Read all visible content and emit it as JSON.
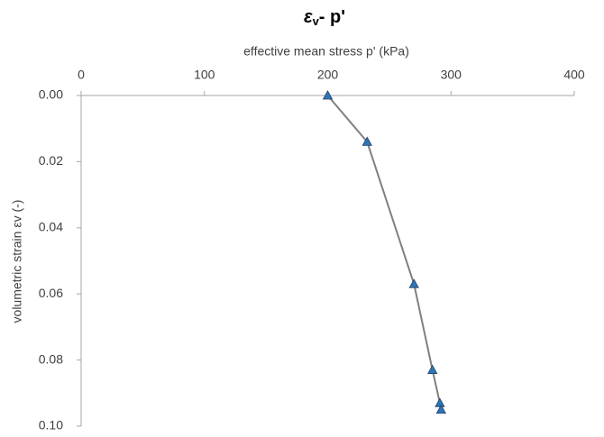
{
  "chart_data": {
    "type": "line",
    "title": {
      "symbol": "ε",
      "subscript": "v",
      "text": "- p'"
    },
    "x_label": "effective mean stress p' (kPa)",
    "y_label": "volumetric strain εv (-)",
    "x_axis_position": "top",
    "y_inverted": true,
    "xlim": [
      0,
      400
    ],
    "xticks": [
      0,
      100,
      200,
      300,
      400
    ],
    "ylim": [
      0,
      0.1
    ],
    "yticks": [
      {
        "value": 0,
        "label": "0.00"
      },
      {
        "value": 0.02,
        "label": "0.02"
      },
      {
        "value": 0.04,
        "label": "0.04"
      },
      {
        "value": 0.06,
        "label": "0.06"
      },
      {
        "value": 0.08,
        "label": "0.08"
      },
      {
        "value": 0.1,
        "label": "0.10"
      }
    ],
    "series": [
      {
        "x": [
          200,
          232,
          270,
          285,
          291,
          292
        ],
        "values": [
          0,
          0.014,
          0.057,
          0.083,
          0.093,
          0.095
        ],
        "color": "#2e75b6",
        "line_color": "#808080",
        "marker": "triangle"
      }
    ]
  }
}
